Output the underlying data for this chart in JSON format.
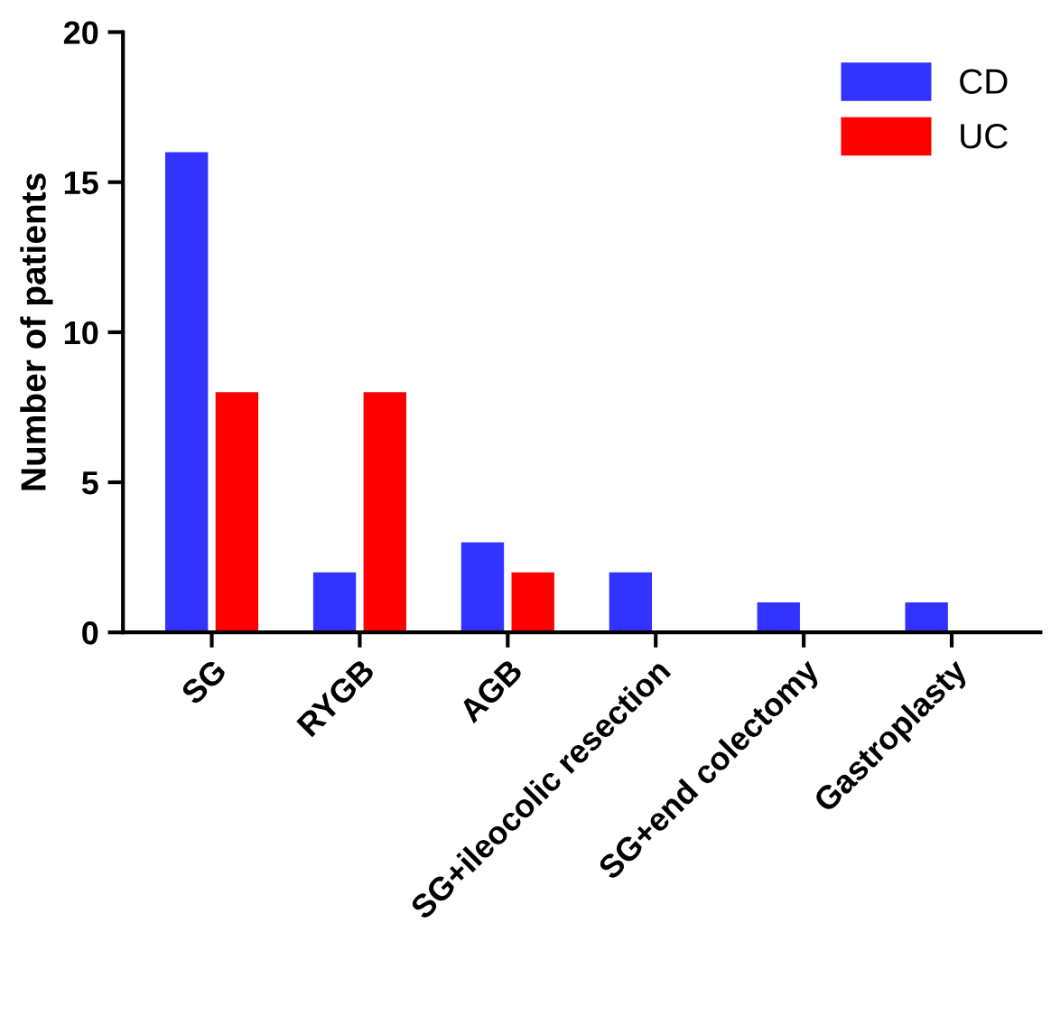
{
  "chart_data": {
    "type": "bar",
    "ylabel": "Number of patients",
    "categories": [
      "SG",
      "RYGB",
      "AGB",
      "SG+ileocolic resection",
      "SG+end colectomy",
      "Gastroplasty"
    ],
    "series": [
      {
        "name": "CD",
        "color": "#3333ff",
        "values": [
          16,
          2,
          3,
          2,
          1,
          1
        ]
      },
      {
        "name": "UC",
        "color": "#ff0000",
        "values": [
          8,
          8,
          2,
          0,
          0,
          0
        ]
      }
    ],
    "ylim": [
      0,
      20
    ],
    "yticks": [
      0,
      5,
      10,
      15,
      20
    ],
    "grid": false,
    "legend": "top right"
  }
}
